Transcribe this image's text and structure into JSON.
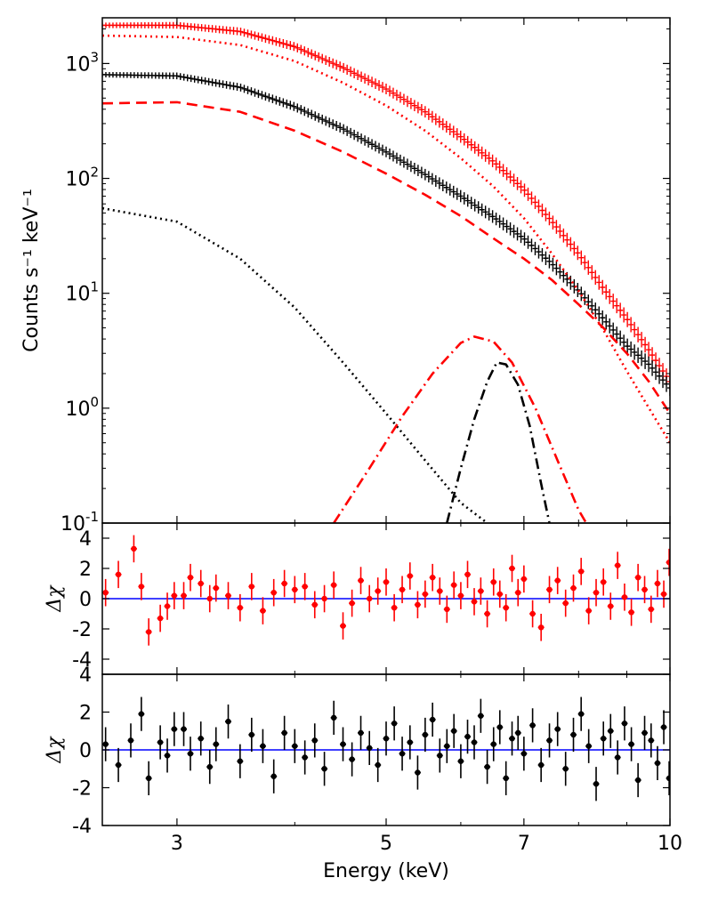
{
  "chart_data": {
    "type": "line",
    "x_axis": {
      "label": "Energy (keV)",
      "scale": "log",
      "xlim": [
        2.5,
        10
      ],
      "ticks": [
        3,
        5,
        7,
        10
      ],
      "tick_labels": [
        "3",
        "5",
        "7",
        "10"
      ]
    },
    "colors": {
      "model_red": "#ff0000",
      "model_black": "#000000",
      "zero_line": "#0000ff"
    },
    "panels": [
      {
        "id": "spectrum",
        "ylabel": "Counts s⁻¹ keV⁻¹",
        "yscale": "log",
        "ylim": [
          0.1,
          2500
        ],
        "ytick_values": [
          0.1,
          1,
          10,
          100,
          1000
        ],
        "ytick_labels": [
          {
            "base": "10",
            "exp": "-1"
          },
          {
            "base": "10",
            "exp": "0"
          },
          {
            "base": "10",
            "exp": "1"
          },
          {
            "base": "10",
            "exp": "2"
          },
          {
            "base": "10",
            "exp": "3"
          }
        ],
        "series": [
          {
            "name": "data-red",
            "color": "#ff0000",
            "style": "crosses",
            "x": [
              2.5,
              3,
              3.5,
              4,
              4.5,
              5,
              5.5,
              6,
              6.5,
              7,
              7.5,
              8,
              8.5,
              9,
              9.5,
              10
            ],
            "y": [
              2150,
              2150,
              1900,
              1400,
              920,
              600,
              380,
              230,
              140,
              80,
              42,
              22,
              11,
              6,
              3.2,
              1.7
            ]
          },
          {
            "name": "data-black",
            "color": "#000000",
            "style": "crosses",
            "x": [
              2.5,
              3,
              3.5,
              4,
              4.5,
              5,
              5.5,
              6,
              6.5,
              7,
              7.5,
              8,
              8.5,
              9,
              9.5,
              10
            ],
            "y": [
              800,
              780,
              620,
              420,
              270,
              170,
              108,
              70,
              46,
              30,
              18,
              10.5,
              6,
              3.5,
              2.4,
              1.5
            ]
          },
          {
            "name": "model-red-dotted",
            "color": "#ff0000",
            "style": "dotted",
            "x": [
              2.5,
              3,
              3.5,
              4,
              4.5,
              5,
              5.5,
              6,
              6.5,
              7,
              7.5,
              8,
              8.5,
              9,
              9.5,
              10
            ],
            "y": [
              1750,
              1700,
              1450,
              1050,
              680,
              430,
              260,
              150,
              85,
              45,
              22,
              10.5,
              4.8,
              2.1,
              1.0,
              0.5
            ]
          },
          {
            "name": "model-red-dashed",
            "color": "#ff0000",
            "style": "dashed",
            "x": [
              2.5,
              3,
              3.5,
              4,
              4.5,
              5,
              5.5,
              6,
              6.5,
              7,
              7.5,
              8,
              8.5,
              9,
              9.5,
              10
            ],
            "y": [
              450,
              460,
              380,
              260,
              170,
              110,
              72,
              47,
              30,
              20,
              13,
              8,
              5,
              3,
              1.7,
              0.9
            ]
          },
          {
            "name": "model-black-dotted",
            "color": "#000000",
            "style": "dotted",
            "x": [
              2.5,
              3,
              3.5,
              4,
              4.5,
              5,
              5.5,
              6,
              6.4
            ],
            "y": [
              55,
              42,
              20,
              7.5,
              2.5,
              0.9,
              0.35,
              0.15,
              0.1
            ]
          },
          {
            "name": "model-red-dashdot",
            "color": "#ff0000",
            "style": "dashdot",
            "x": [
              4.4,
              4.8,
              5.2,
              5.6,
              6.0,
              6.2,
              6.5,
              6.8,
              7.2,
              7.6,
              8.0,
              8.15
            ],
            "y": [
              0.1,
              0.3,
              0.85,
              2.0,
              3.7,
              4.2,
              3.8,
              2.5,
              1.0,
              0.35,
              0.13,
              0.1
            ]
          },
          {
            "name": "model-black-dashdot",
            "color": "#000000",
            "style": "dashdot",
            "x": [
              5.8,
              6.0,
              6.2,
              6.4,
              6.55,
              6.7,
              6.9,
              7.1,
              7.3,
              7.45
            ],
            "y": [
              0.1,
              0.3,
              0.8,
              1.7,
              2.5,
              2.4,
              1.6,
              0.7,
              0.22,
              0.1
            ]
          }
        ]
      },
      {
        "id": "residuals-red",
        "ylabel": "Δχ",
        "yscale": "linear",
        "ylim": [
          -5,
          5
        ],
        "ytick_values": [
          -4,
          -2,
          0,
          2,
          4
        ],
        "ytick_labels": [
          "-4",
          "-2",
          "0",
          "2",
          "4"
        ],
        "zero_line": true,
        "series": [
          {
            "name": "residuals-red",
            "color": "#ff0000",
            "style": "errorbar-points",
            "x": [
              2.52,
              2.6,
              2.7,
              2.75,
              2.8,
              2.88,
              2.93,
              2.98,
              3.05,
              3.1,
              3.18,
              3.25,
              3.3,
              3.4,
              3.5,
              3.6,
              3.7,
              3.8,
              3.9,
              4.0,
              4.1,
              4.2,
              4.3,
              4.4,
              4.5,
              4.6,
              4.7,
              4.8,
              4.9,
              5.0,
              5.1,
              5.2,
              5.3,
              5.4,
              5.5,
              5.6,
              5.7,
              5.8,
              5.9,
              6.0,
              6.1,
              6.2,
              6.3,
              6.4,
              6.5,
              6.6,
              6.7,
              6.8,
              6.9,
              7.0,
              7.15,
              7.3,
              7.45,
              7.6,
              7.75,
              7.9,
              8.05,
              8.2,
              8.35,
              8.5,
              8.65,
              8.8,
              8.95,
              9.1,
              9.25,
              9.4,
              9.55,
              9.7,
              9.85,
              9.98
            ],
            "y": [
              0.4,
              1.6,
              3.3,
              0.8,
              -2.2,
              -1.3,
              -0.5,
              0.2,
              0.2,
              1.4,
              1.0,
              0.0,
              0.7,
              0.2,
              -0.6,
              0.8,
              -0.8,
              0.4,
              1.0,
              0.6,
              0.8,
              -0.4,
              0.0,
              0.9,
              -1.8,
              -0.3,
              1.2,
              0.0,
              0.5,
              1.1,
              -0.6,
              0.6,
              1.5,
              -0.4,
              0.3,
              1.4,
              0.5,
              -0.7,
              0.9,
              0.2,
              1.6,
              -0.2,
              0.5,
              -1.0,
              1.1,
              0.3,
              -0.6,
              2.0,
              0.4,
              1.3,
              -1.0,
              -1.9,
              0.6,
              1.2,
              -0.3,
              0.7,
              1.8,
              -0.8,
              0.4,
              1.1,
              -0.5,
              2.2,
              0.1,
              -0.9,
              1.4,
              0.6,
              -0.7,
              1.0,
              0.3,
              2.4
            ],
            "error": 0.9
          }
        ]
      },
      {
        "id": "residuals-black",
        "ylabel": "Δχ",
        "yscale": "linear",
        "ylim": [
          -4,
          4
        ],
        "ytick_values": [
          -4,
          -2,
          0,
          2,
          4
        ],
        "ytick_labels": [
          "-4",
          "-2",
          "0",
          "2",
          "4"
        ],
        "zero_line": true,
        "series": [
          {
            "name": "residuals-black",
            "color": "#000000",
            "style": "errorbar-points",
            "x": [
              2.52,
              2.6,
              2.68,
              2.75,
              2.8,
              2.88,
              2.93,
              2.98,
              3.05,
              3.1,
              3.18,
              3.25,
              3.3,
              3.4,
              3.5,
              3.6,
              3.7,
              3.8,
              3.9,
              4.0,
              4.1,
              4.2,
              4.3,
              4.4,
              4.5,
              4.6,
              4.7,
              4.8,
              4.9,
              5.0,
              5.1,
              5.2,
              5.3,
              5.4,
              5.5,
              5.6,
              5.7,
              5.8,
              5.9,
              6.0,
              6.1,
              6.2,
              6.3,
              6.4,
              6.5,
              6.6,
              6.7,
              6.8,
              6.9,
              7.0,
              7.15,
              7.3,
              7.45,
              7.6,
              7.75,
              7.9,
              8.05,
              8.2,
              8.35,
              8.5,
              8.65,
              8.8,
              8.95,
              9.1,
              9.25,
              9.4,
              9.55,
              9.7,
              9.85,
              9.98
            ],
            "y": [
              0.3,
              -0.8,
              0.5,
              1.9,
              -1.5,
              0.4,
              -0.3,
              1.1,
              1.1,
              -0.2,
              0.6,
              -0.9,
              0.3,
              1.5,
              -0.6,
              0.8,
              0.2,
              -1.4,
              0.9,
              0.2,
              -0.4,
              0.5,
              -1.0,
              1.7,
              0.3,
              -0.5,
              0.9,
              0.1,
              -0.8,
              0.6,
              1.4,
              -0.2,
              0.4,
              -1.2,
              0.8,
              1.6,
              -0.3,
              0.2,
              1.0,
              -0.6,
              0.7,
              0.4,
              1.8,
              -0.9,
              0.3,
              1.2,
              -1.5,
              0.6,
              0.9,
              -0.2,
              1.3,
              -0.8,
              0.5,
              1.1,
              -1.0,
              0.8,
              1.9,
              0.2,
              -1.8,
              0.6,
              1.0,
              -0.4,
              1.4,
              0.3,
              -1.6,
              0.9,
              0.5,
              -0.7,
              1.2,
              -1.5
            ],
            "error": 0.9
          }
        ]
      }
    ]
  }
}
